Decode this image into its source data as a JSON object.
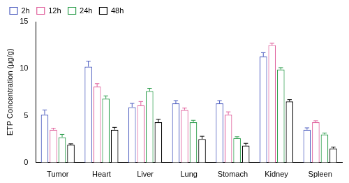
{
  "chart_data": {
    "type": "bar",
    "y_label": "ETP Concentration (μg/g)",
    "categories": [
      "Tumor",
      "Heart",
      "Liver",
      "Lung",
      "Stomach",
      "Kidney",
      "Spleen"
    ],
    "series": [
      {
        "name": "2h",
        "color": "#4f5fc0",
        "values": [
          5.1,
          10.2,
          5.9,
          6.3,
          6.3,
          11.3,
          3.5
        ],
        "errors": [
          0.5,
          0.6,
          0.4,
          0.3,
          0.3,
          0.4,
          0.2
        ]
      },
      {
        "name": "12h",
        "color": "#e0609c",
        "values": [
          3.5,
          8.1,
          6.1,
          5.6,
          5.1,
          12.5,
          4.3
        ],
        "errors": [
          0.15,
          0.3,
          0.4,
          0.2,
          0.3,
          0.2,
          0.15
        ]
      },
      {
        "name": "24h",
        "color": "#2e9e4e",
        "values": [
          2.7,
          6.8,
          7.6,
          4.3,
          2.6,
          9.9,
          3.0
        ],
        "errors": [
          0.3,
          0.3,
          0.3,
          0.2,
          0.15,
          0.2,
          0.15
        ]
      },
      {
        "name": "48h",
        "color": "#000000",
        "values": [
          1.9,
          3.5,
          4.3,
          2.5,
          1.8,
          6.5,
          1.5
        ],
        "errors": [
          0.1,
          0.25,
          0.3,
          0.3,
          0.25,
          0.2,
          0.15
        ]
      }
    ],
    "ylim": [
      0,
      15
    ],
    "yticks": [
      0,
      5,
      10,
      15
    ],
    "grid": false,
    "legend": "top"
  }
}
